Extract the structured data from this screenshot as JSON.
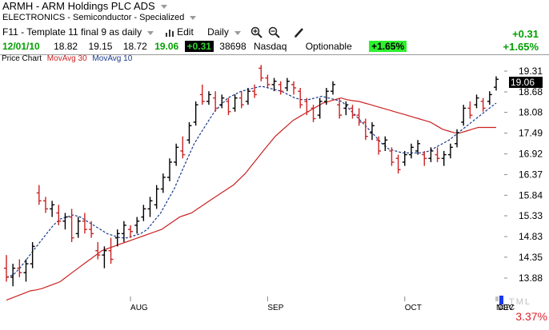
{
  "header": {
    "symbol_line": "ARMH  - ARM Holdings PLC ADS",
    "sector_line": "ELECTRONICS - Semiconductor - Specialized"
  },
  "toolbar": {
    "template": "F11 - Template 11 final 9 as daily",
    "edit_label": "Edit",
    "period_label": "Daily",
    "change_abs": "+0.31",
    "change_pct": "+1.65%"
  },
  "quote": {
    "date": "12/01/10",
    "open": "18.82",
    "high": "19.15",
    "low": "18.72",
    "close": "19.06",
    "change": "+0.31",
    "volume": "38698",
    "exchange": "Nasdaq",
    "optionable": "Optionable",
    "change_pct": "+1.65%"
  },
  "legend": {
    "price": "Price Chart",
    "ma30": "MovAvg 30",
    "ma10": "MovAvg 10"
  },
  "colors": {
    "ma30": "#cc2222",
    "ma10": "#1a3a8a",
    "up_bar": "#000000",
    "down_bar": "#cc2222",
    "price_tag_bg": "#000000",
    "pct_text": "#e0202c"
  },
  "bottom": {
    "pct_change": "3.37%",
    "tml": "TML"
  },
  "chart_data": {
    "type": "ohlc",
    "y_ticks": [
      "19.31",
      "18.68",
      "18.08",
      "17.49",
      "16.92",
      "16.37",
      "15.84",
      "15.33",
      "14.83",
      "14.35",
      "13.88"
    ],
    "x_ticks": [
      "AUG",
      "SEP",
      "OCT",
      "NOV",
      "DEC"
    ],
    "last_price_label": "19.06",
    "ylim": [
      13.5,
      19.6
    ],
    "log_scale": true,
    "series": [
      {
        "name": "MovAvg 30",
        "values": [
          13.4,
          13.45,
          13.5,
          13.55,
          13.6,
          13.62,
          13.65,
          13.7,
          13.75,
          13.8,
          13.9,
          14.0,
          14.1,
          14.2,
          14.3,
          14.4,
          14.5,
          14.55,
          14.6,
          14.65,
          14.7,
          14.75,
          14.8,
          14.85,
          14.9,
          14.95,
          15.0,
          15.1,
          15.2,
          15.3,
          15.35,
          15.4,
          15.5,
          15.6,
          15.7,
          15.8,
          15.9,
          16.0,
          16.1,
          16.25,
          16.4,
          16.6,
          16.8,
          17.0,
          17.2,
          17.4,
          17.55,
          17.7,
          17.85,
          17.95,
          18.05,
          18.15,
          18.25,
          18.35,
          18.4,
          18.45,
          18.5,
          18.45,
          18.42,
          18.4,
          18.35,
          18.3,
          18.25,
          18.2,
          18.15,
          18.1,
          18.05,
          18.0,
          17.95,
          17.9,
          17.85,
          17.8,
          17.7,
          17.6,
          17.55,
          17.5,
          17.5,
          17.55,
          17.6,
          17.65,
          17.65,
          17.65,
          17.65
        ]
      },
      {
        "name": "MovAvg 10",
        "values": [
          13.9,
          13.95,
          14.1,
          14.3,
          14.5,
          14.7,
          14.9,
          15.1,
          15.25,
          15.3,
          15.35,
          15.3,
          15.2,
          15.1,
          15.0,
          14.9,
          14.85,
          14.8,
          14.8,
          14.85,
          14.9,
          15.0,
          15.2,
          15.4,
          15.7,
          16.0,
          16.4,
          16.8,
          17.2,
          17.5,
          17.8,
          18.1,
          18.3,
          18.5,
          18.6,
          18.7,
          18.75,
          18.8,
          18.85,
          18.8,
          18.75,
          18.7,
          18.6,
          18.5,
          18.45,
          18.45,
          18.5,
          18.55,
          18.5,
          18.45,
          18.4,
          18.2,
          18.0,
          17.8,
          17.6,
          17.4,
          17.2,
          17.05,
          17.0,
          16.95,
          16.95,
          16.95,
          16.95,
          17.0,
          17.1,
          17.2,
          17.3,
          17.45,
          17.6,
          17.75,
          17.9,
          18.05,
          18.2,
          18.35
        ]
      }
    ],
    "ohlc": [
      [
        14.1,
        14.4,
        13.8,
        13.9
      ],
      [
        13.9,
        14.2,
        13.7,
        14.1
      ],
      [
        14.1,
        14.3,
        13.9,
        14.0
      ],
      [
        14.0,
        14.3,
        13.8,
        14.2
      ],
      [
        14.2,
        14.7,
        14.1,
        14.6
      ],
      [
        15.9,
        16.1,
        15.6,
        15.7
      ],
      [
        15.7,
        15.8,
        15.4,
        15.5
      ],
      [
        15.5,
        15.7,
        15.3,
        15.6
      ],
      [
        15.4,
        15.6,
        15.1,
        15.2
      ],
      [
        15.2,
        15.4,
        15.0,
        15.3
      ],
      [
        15.3,
        15.5,
        14.7,
        14.8
      ],
      [
        14.9,
        15.3,
        14.8,
        15.2
      ],
      [
        15.2,
        15.4,
        14.9,
        15.0
      ],
      [
        15.0,
        15.2,
        14.8,
        14.9
      ],
      [
        14.5,
        14.7,
        14.3,
        14.4
      ],
      [
        14.4,
        14.6,
        14.1,
        14.5
      ],
      [
        14.5,
        14.8,
        14.2,
        14.3
      ],
      [
        14.8,
        15.0,
        14.6,
        14.9
      ],
      [
        14.9,
        15.2,
        14.7,
        15.1
      ],
      [
        15.0,
        15.1,
        14.8,
        14.95
      ],
      [
        15.1,
        15.3,
        14.9,
        15.2
      ],
      [
        15.3,
        15.6,
        15.2,
        15.5
      ],
      [
        15.5,
        15.8,
        15.3,
        15.7
      ],
      [
        15.6,
        16.1,
        15.5,
        16.0
      ],
      [
        16.0,
        16.4,
        15.9,
        16.3
      ],
      [
        16.3,
        16.8,
        16.2,
        16.7
      ],
      [
        16.7,
        17.2,
        16.6,
        17.1
      ],
      [
        17.0,
        17.4,
        16.8,
        16.9
      ],
      [
        17.3,
        17.8,
        17.2,
        17.7
      ],
      [
        17.8,
        18.4,
        17.7,
        18.3
      ],
      [
        18.6,
        18.9,
        18.3,
        18.4
      ],
      [
        18.4,
        18.7,
        18.3,
        18.6
      ],
      [
        18.5,
        18.7,
        18.1,
        18.2
      ],
      [
        18.3,
        18.6,
        18.2,
        18.5
      ],
      [
        18.4,
        18.5,
        18.0,
        18.1
      ],
      [
        18.2,
        18.6,
        18.1,
        18.5
      ],
      [
        18.5,
        18.7,
        18.2,
        18.3
      ],
      [
        18.4,
        18.8,
        18.3,
        18.7
      ],
      [
        18.7,
        18.9,
        18.5,
        18.6
      ],
      [
        19.4,
        19.5,
        19.0,
        19.1
      ],
      [
        19.1,
        19.2,
        18.8,
        18.9
      ],
      [
        18.9,
        19.1,
        18.7,
        19.0
      ],
      [
        18.9,
        19.0,
        18.6,
        18.7
      ],
      [
        18.8,
        19.1,
        18.7,
        19.0
      ],
      [
        18.9,
        19.0,
        18.6,
        18.8
      ],
      [
        18.7,
        18.8,
        18.2,
        18.3
      ],
      [
        18.4,
        18.5,
        18.0,
        18.1
      ],
      [
        18.2,
        18.3,
        17.8,
        17.9
      ],
      [
        18.0,
        18.5,
        17.9,
        18.4
      ],
      [
        18.4,
        18.8,
        18.3,
        18.7
      ],
      [
        18.7,
        19.0,
        18.6,
        18.9
      ],
      [
        18.3,
        18.5,
        17.9,
        18.0
      ],
      [
        18.2,
        18.4,
        18.0,
        18.3
      ],
      [
        18.2,
        18.3,
        17.9,
        18.0
      ],
      [
        18.0,
        18.2,
        17.7,
        17.8
      ],
      [
        17.8,
        17.9,
        17.3,
        17.4
      ],
      [
        17.5,
        17.8,
        17.3,
        17.7
      ],
      [
        17.3,
        17.4,
        16.9,
        17.0
      ],
      [
        17.2,
        17.4,
        17.0,
        17.3
      ],
      [
        17.0,
        17.1,
        16.6,
        16.7
      ],
      [
        16.8,
        16.9,
        16.4,
        16.5
      ],
      [
        16.7,
        17.0,
        16.6,
        16.9
      ],
      [
        16.9,
        17.2,
        16.8,
        17.1
      ],
      [
        17.0,
        17.3,
        16.9,
        17.2
      ],
      [
        16.9,
        17.0,
        16.6,
        16.8
      ],
      [
        16.8,
        17.1,
        16.7,
        17.0
      ],
      [
        16.9,
        17.1,
        16.7,
        16.8
      ],
      [
        16.8,
        17.0,
        16.6,
        16.9
      ],
      [
        16.9,
        17.2,
        16.8,
        17.1
      ],
      [
        17.2,
        17.6,
        17.1,
        17.5
      ],
      [
        17.8,
        18.3,
        17.7,
        18.2
      ],
      [
        18.2,
        18.4,
        17.9,
        18.0
      ],
      [
        18.3,
        18.6,
        18.2,
        18.5
      ],
      [
        18.4,
        18.5,
        18.1,
        18.2
      ],
      [
        18.4,
        18.7,
        18.3,
        18.6
      ],
      [
        18.82,
        19.15,
        18.72,
        19.06
      ]
    ]
  }
}
